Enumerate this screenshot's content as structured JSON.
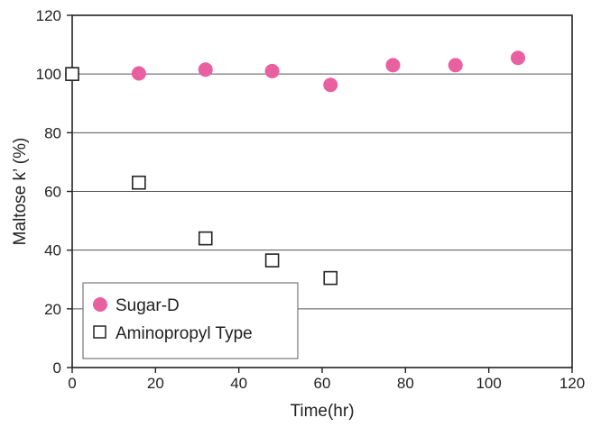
{
  "chart_data": {
    "type": "scatter",
    "xlabel": "Time(hr)",
    "ylabel": "Maltose k’ (%)",
    "xlim": [
      0,
      120
    ],
    "ylim": [
      0,
      120
    ],
    "x_ticks": [
      0,
      20,
      40,
      60,
      80,
      100,
      120
    ],
    "y_ticks": [
      0,
      20,
      40,
      60,
      80,
      100,
      120
    ],
    "grid": "horizontal",
    "legend_position": "bottom-left",
    "series": [
      {
        "name": "Sugar-D",
        "marker": "filled-circle",
        "color": "#e8609f",
        "points": [
          {
            "x": 0,
            "y": 100
          },
          {
            "x": 16,
            "y": 100.2
          },
          {
            "x": 32,
            "y": 101.5
          },
          {
            "x": 48,
            "y": 101
          },
          {
            "x": 62,
            "y": 96.3
          },
          {
            "x": 77,
            "y": 103
          },
          {
            "x": 92,
            "y": 103
          },
          {
            "x": 107,
            "y": 105.5
          }
        ]
      },
      {
        "name": "Aminopropyl Type",
        "marker": "open-square",
        "color": "#222222",
        "points": [
          {
            "x": 0,
            "y": 100
          },
          {
            "x": 16,
            "y": 63
          },
          {
            "x": 32,
            "y": 44
          },
          {
            "x": 48,
            "y": 36.5
          },
          {
            "x": 62,
            "y": 30.5
          }
        ]
      }
    ]
  }
}
